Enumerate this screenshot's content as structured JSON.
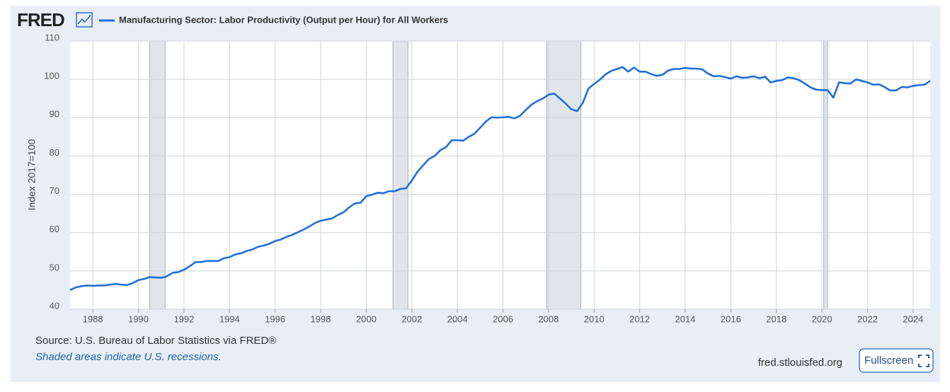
{
  "logo": "FRED",
  "chart_data": {
    "type": "line",
    "ylabel": "Index 2017=100",
    "source": "Source: U.S. Bureau of Labor Statistics via FRED®",
    "note": "Shaded areas indicate U.S. recessions.",
    "site": "fred.stlouisfed.org",
    "button": "Fullscreen",
    "grid": true,
    "xlim": [
      1987,
      2024.75
    ],
    "ylim": [
      40,
      110
    ],
    "xticks": [
      1988,
      1990,
      1992,
      1994,
      1996,
      1998,
      2000,
      2002,
      2004,
      2006,
      2008,
      2010,
      2012,
      2014,
      2016,
      2018,
      2020,
      2022,
      2024
    ],
    "yticks": [
      40,
      50,
      60,
      70,
      80,
      90,
      100,
      110
    ],
    "recessions": [
      [
        1990.5,
        1991.17
      ],
      [
        2001.17,
        2001.83
      ],
      [
        2007.92,
        2009.42
      ],
      [
        2020.08,
        2020.25
      ]
    ],
    "x": [
      1987,
      1987.25,
      1987.5,
      1987.75,
      1988,
      1988.25,
      1988.5,
      1988.75,
      1989,
      1989.25,
      1989.5,
      1989.75,
      1990,
      1990.25,
      1990.5,
      1990.75,
      1991,
      1991.25,
      1991.5,
      1991.75,
      1992,
      1992.25,
      1992.5,
      1992.75,
      1993,
      1993.25,
      1993.5,
      1993.75,
      1994,
      1994.25,
      1994.5,
      1994.75,
      1995,
      1995.25,
      1995.5,
      1995.75,
      1996,
      1996.25,
      1996.5,
      1996.75,
      1997,
      1997.25,
      1997.5,
      1997.75,
      1998,
      1998.25,
      1998.5,
      1998.75,
      1999,
      1999.25,
      1999.5,
      1999.75,
      2000,
      2000.25,
      2000.5,
      2000.75,
      2001,
      2001.25,
      2001.5,
      2001.75,
      2002,
      2002.25,
      2002.5,
      2002.75,
      2003,
      2003.25,
      2003.5,
      2003.75,
      2004,
      2004.25,
      2004.5,
      2004.75,
      2005,
      2005.25,
      2005.5,
      2005.75,
      2006,
      2006.25,
      2006.5,
      2006.75,
      2007,
      2007.25,
      2007.5,
      2007.75,
      2008,
      2008.25,
      2008.5,
      2008.75,
      2009,
      2009.25,
      2009.5,
      2009.75,
      2010,
      2010.25,
      2010.5,
      2010.75,
      2011,
      2011.25,
      2011.5,
      2011.75,
      2012,
      2012.25,
      2012.5,
      2012.75,
      2013,
      2013.25,
      2013.5,
      2013.75,
      2014,
      2014.25,
      2014.5,
      2014.75,
      2015,
      2015.25,
      2015.5,
      2015.75,
      2016,
      2016.25,
      2016.5,
      2016.75,
      2017,
      2017.25,
      2017.5,
      2017.75,
      2018,
      2018.25,
      2018.5,
      2018.75,
      2019,
      2019.25,
      2019.5,
      2019.75,
      2020,
      2020.25,
      2020.5,
      2020.75,
      2021,
      2021.25,
      2021.5,
      2021.75,
      2022,
      2022.25,
      2022.5,
      2022.75,
      2023,
      2023.25,
      2023.5,
      2023.75,
      2024,
      2024.25,
      2024.5,
      2024.75
    ],
    "series": [
      {
        "name": "Manufacturing Sector: Labor Productivity (Output per Hour) for All Workers",
        "color": "#1f6fd8",
        "values": [
          45.0,
          45.7,
          46.0,
          46.2,
          46.1,
          46.2,
          46.2,
          46.4,
          46.6,
          46.4,
          46.3,
          46.8,
          47.6,
          47.9,
          48.4,
          48.3,
          48.2,
          48.6,
          49.5,
          49.7,
          50.3,
          51.2,
          52.3,
          52.3,
          52.6,
          52.6,
          52.6,
          53.3,
          53.6,
          54.3,
          54.6,
          55.2,
          55.6,
          56.3,
          56.6,
          57.1,
          57.8,
          58.2,
          58.9,
          59.4,
          60.1,
          60.8,
          61.6,
          62.5,
          63.1,
          63.4,
          63.7,
          64.6,
          65.3,
          66.6,
          67.6,
          67.8,
          69.5,
          69.9,
          70.4,
          70.3,
          70.8,
          70.8,
          71.4,
          71.6,
          73.6,
          75.9,
          77.6,
          79.2,
          80.0,
          81.5,
          82.3,
          84.1,
          84.1,
          84.0,
          85.0,
          85.8,
          87.4,
          89.0,
          90.1,
          90.0,
          90.1,
          90.2,
          89.8,
          90.5,
          92.0,
          93.4,
          94.3,
          95.0,
          96.0,
          96.3,
          95.0,
          93.7,
          92.2,
          91.7,
          93.8,
          97.6,
          98.8,
          99.9,
          101.3,
          102.2,
          102.7,
          103.2,
          102.0,
          103.1,
          102.0,
          102.0,
          101.4,
          100.9,
          101.2,
          102.3,
          102.7,
          102.7,
          103.0,
          102.8,
          102.8,
          102.6,
          101.5,
          100.8,
          100.9,
          100.6,
          100.2,
          100.8,
          100.4,
          100.5,
          100.8,
          100.3,
          100.7,
          99.2,
          99.6,
          99.8,
          100.5,
          100.3,
          99.8,
          98.9,
          97.9,
          97.3,
          97.2,
          97.2,
          95.2,
          99.2,
          99.0,
          98.9,
          100.0,
          99.6,
          99.2,
          98.6,
          98.7,
          98.0,
          97.1,
          97.1,
          98.0,
          97.9,
          98.3,
          98.5,
          98.6,
          99.6
        ]
      }
    ]
  }
}
